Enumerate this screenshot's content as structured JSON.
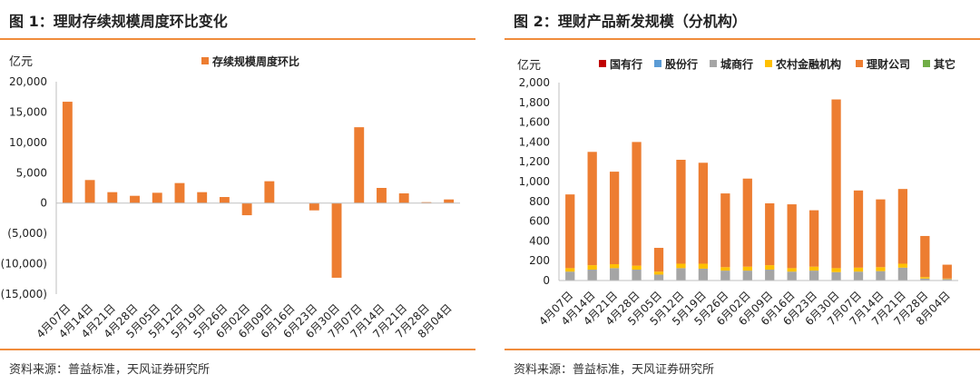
{
  "left": {
    "title": "图 1：理财存续规模周度环比变化",
    "source": "资料来源：普益标准，天风证券研究所"
  },
  "right": {
    "title": "图 2：理财产品新发规模（分机构）",
    "source": "资料来源：普益标准，天风证券研究所"
  },
  "colors": {
    "accent": "#f08c3c",
    "bar": "#ed7d31"
  },
  "chart_data": [
    {
      "type": "bar",
      "title": "",
      "ylabel": "亿元",
      "ylim": [
        -15000,
        20000
      ],
      "yticks": [
        20000,
        15000,
        10000,
        5000,
        0,
        -5000,
        -10000,
        -15000
      ],
      "ytick_labels": [
        "20,000",
        "15,000",
        "10,000",
        "5,000",
        "0",
        "(5,000)",
        "(10,000)",
        "(15,000)"
      ],
      "categories": [
        "4月07日",
        "4月14日",
        "4月21日",
        "4月28日",
        "5月05日",
        "5月12日",
        "5月19日",
        "5月26日",
        "6月02日",
        "6月09日",
        "6月16日",
        "6月23日",
        "6月30日",
        "7月07日",
        "7月14日",
        "7月21日",
        "7月28日",
        "8月04日"
      ],
      "series": [
        {
          "name": "存续规模周度环比",
          "color": "#ed7d31",
          "values": [
            16700,
            3800,
            1800,
            1200,
            1700,
            3300,
            1800,
            1000,
            -2000,
            3600,
            0,
            -1200,
            -12300,
            12500,
            2500,
            1600,
            150,
            600
          ]
        }
      ],
      "legend_position": "top",
      "grid": false
    },
    {
      "type": "bar",
      "stacked": true,
      "title": "",
      "ylabel": "亿元",
      "ylim": [
        0,
        2000
      ],
      "yticks": [
        0,
        200,
        400,
        600,
        800,
        1000,
        1200,
        1400,
        1600,
        1800,
        2000
      ],
      "ytick_labels": [
        "0",
        "200",
        "400",
        "600",
        "800",
        "1,000",
        "1,200",
        "1,400",
        "1,600",
        "1,800",
        "2,000"
      ],
      "categories": [
        "4月07日",
        "4月14日",
        "4月21日",
        "4月28日",
        "5月05日",
        "5月12日",
        "5月19日",
        "5月26日",
        "6月02日",
        "6月09日",
        "6月16日",
        "6月23日",
        "6月30日",
        "7月07日",
        "7月14日",
        "7月21日",
        "7月28日",
        "8月04日"
      ],
      "series": [
        {
          "name": "国有行",
          "color": "#c00000",
          "values": [
            0,
            0,
            0,
            0,
            0,
            0,
            0,
            0,
            0,
            0,
            0,
            0,
            0,
            0,
            0,
            0,
            0,
            0
          ]
        },
        {
          "name": "股份行",
          "color": "#5b9bd5",
          "values": [
            0,
            0,
            0,
            0,
            0,
            0,
            0,
            0,
            0,
            0,
            0,
            0,
            0,
            0,
            0,
            0,
            0,
            0
          ]
        },
        {
          "name": "城商行",
          "color": "#a5a5a5",
          "values": [
            90,
            110,
            125,
            110,
            60,
            125,
            120,
            100,
            100,
            110,
            90,
            100,
            85,
            90,
            95,
            130,
            20,
            15
          ]
        },
        {
          "name": "农村金融机构",
          "color": "#ffc000",
          "values": [
            35,
            45,
            40,
            40,
            30,
            45,
            50,
            35,
            40,
            45,
            35,
            40,
            40,
            40,
            40,
            40,
            15,
            5
          ]
        },
        {
          "name": "理财公司",
          "color": "#ed7d31",
          "values": [
            745,
            1145,
            935,
            1250,
            240,
            1050,
            1020,
            745,
            890,
            625,
            645,
            570,
            1705,
            780,
            685,
            755,
            415,
            140
          ]
        },
        {
          "name": "其它",
          "color": "#70ad47",
          "values": [
            0,
            0,
            0,
            0,
            0,
            0,
            0,
            0,
            0,
            0,
            0,
            0,
            0,
            0,
            0,
            0,
            0,
            0
          ]
        }
      ],
      "legend_position": "top",
      "grid": false
    }
  ]
}
